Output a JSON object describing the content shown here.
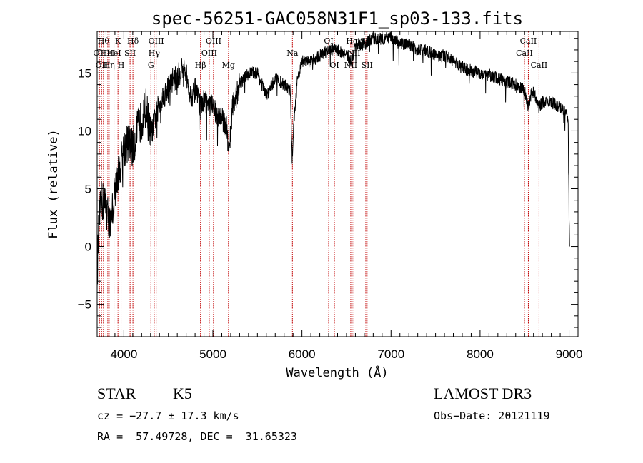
{
  "chart_data": {
    "type": "line",
    "title": "spec-56251-GAC058N31F1_sp03-133.fits",
    "xlabel": "Wavelength (Å)",
    "ylabel": "Flux (relative)",
    "xlim": [
      3700,
      9100
    ],
    "ylim": [
      -7.8,
      18.6
    ],
    "xticks": [
      4000,
      5000,
      6000,
      7000,
      8000,
      9000
    ],
    "yticks": [
      -5,
      0,
      5,
      10,
      15
    ],
    "anchors": [
      [
        3700,
        -2.5
      ],
      [
        3720,
        2.0
      ],
      [
        3750,
        4.0
      ],
      [
        3800,
        3.5
      ],
      [
        3850,
        1.5
      ],
      [
        3900,
        5.0
      ],
      [
        3950,
        6.5
      ],
      [
        4000,
        8.5
      ],
      [
        4050,
        9.0
      ],
      [
        4100,
        8.5
      ],
      [
        4150,
        10.0
      ],
      [
        4200,
        11.0
      ],
      [
        4250,
        12.0
      ],
      [
        4300,
        9.5
      ],
      [
        4350,
        11.0
      ],
      [
        4400,
        12.5
      ],
      [
        4450,
        13.0
      ],
      [
        4500,
        13.8
      ],
      [
        4550,
        14.5
      ],
      [
        4600,
        14.5
      ],
      [
        4650,
        15.5
      ],
      [
        4700,
        14.8
      ],
      [
        4750,
        13.0
      ],
      [
        4800,
        13.5
      ],
      [
        4860,
        12.0
      ],
      [
        4900,
        12.5
      ],
      [
        4950,
        12.3
      ],
      [
        5000,
        12.0
      ],
      [
        5050,
        11.5
      ],
      [
        5100,
        11.0
      ],
      [
        5150,
        10.5
      ],
      [
        5180,
        8.0
      ],
      [
        5220,
        12.0
      ],
      [
        5300,
        14.0
      ],
      [
        5400,
        15.0
      ],
      [
        5500,
        15.0
      ],
      [
        5600,
        13.0
      ],
      [
        5700,
        14.5
      ],
      [
        5800,
        14.0
      ],
      [
        5870,
        13.5
      ],
      [
        5890,
        7.5
      ],
      [
        5910,
        11.0
      ],
      [
        5950,
        14.5
      ],
      [
        6000,
        16.0
      ],
      [
        6100,
        16.0
      ],
      [
        6200,
        16.5
      ],
      [
        6300,
        17.0
      ],
      [
        6400,
        17.0
      ],
      [
        6500,
        16.5
      ],
      [
        6560,
        16.0
      ],
      [
        6600,
        17.5
      ],
      [
        6700,
        17.5
      ],
      [
        6800,
        18.0
      ],
      [
        6900,
        18.0
      ],
      [
        7000,
        18.0
      ],
      [
        7100,
        17.5
      ],
      [
        7200,
        17.5
      ],
      [
        7300,
        17.0
      ],
      [
        7400,
        17.0
      ],
      [
        7500,
        16.5
      ],
      [
        7600,
        16.5
      ],
      [
        7700,
        16.0
      ],
      [
        7800,
        15.5
      ],
      [
        7900,
        15.2
      ],
      [
        8000,
        15.0
      ],
      [
        8100,
        14.8
      ],
      [
        8200,
        14.5
      ],
      [
        8300,
        14.3
      ],
      [
        8400,
        14.0
      ],
      [
        8498,
        13.5
      ],
      [
        8530,
        12.5
      ],
      [
        8542,
        12.0
      ],
      [
        8580,
        13.5
      ],
      [
        8620,
        13.0
      ],
      [
        8662,
        12.0
      ],
      [
        8700,
        12.5
      ],
      [
        8800,
        12.5
      ],
      [
        8900,
        12.0
      ],
      [
        8970,
        11.5
      ],
      [
        8990,
        11.0
      ],
      [
        9000,
        2.5
      ],
      [
        9005,
        0.0
      ]
    ],
    "line_markers": [
      {
        "wl": 3726,
        "label": "OII",
        "row": 2
      },
      {
        "wl": 3750,
        "label": "OII",
        "row": 3
      },
      {
        "wl": 3771,
        "label": "Hθ",
        "row": 1
      },
      {
        "wl": 3820,
        "label": "HeI",
        "row": 2
      },
      {
        "wl": 3835,
        "label": "Hη",
        "row": 3
      },
      {
        "wl": 3889,
        "label": "HeI",
        "row": 2
      },
      {
        "wl": 3934,
        "label": "K",
        "row": 1
      },
      {
        "wl": 3969,
        "label": "H",
        "row": 3
      },
      {
        "wl": 4070,
        "label": "SII",
        "row": 2
      },
      {
        "wl": 4102,
        "label": "Hδ",
        "row": 1
      },
      {
        "wl": 4304,
        "label": "G",
        "row": 3
      },
      {
        "wl": 4341,
        "label": "Hγ",
        "row": 2
      },
      {
        "wl": 4363,
        "label": "OIII",
        "row": 1
      },
      {
        "wl": 4861,
        "label": "Hβ",
        "row": 3
      },
      {
        "wl": 4959,
        "label": "OIII",
        "row": 2
      },
      {
        "wl": 5007,
        "label": "OIII",
        "row": 1
      },
      {
        "wl": 5175,
        "label": "Mg",
        "row": 3
      },
      {
        "wl": 5893,
        "label": "Na",
        "row": 2
      },
      {
        "wl": 6300,
        "label": "OI",
        "row": 1
      },
      {
        "wl": 6364,
        "label": "OI",
        "row": 3
      },
      {
        "wl": 6548,
        "label": "NII",
        "row": 3
      },
      {
        "wl": 6563,
        "label": "Hα",
        "row": 1
      },
      {
        "wl": 6583,
        "label": "NII",
        "row": 2
      },
      {
        "wl": 6717,
        "label": "SII",
        "row": 1
      },
      {
        "wl": 6731,
        "label": "SII",
        "row": 3
      },
      {
        "wl": 8498,
        "label": "CaII",
        "row": 2
      },
      {
        "wl": 8542,
        "label": "CaII",
        "row": 1
      },
      {
        "wl": 8662,
        "label": "CaII",
        "row": 3
      }
    ]
  },
  "info": {
    "object_class": "STAR",
    "subclass": "K5",
    "survey": "LAMOST DR3",
    "cz": "cz = −27.7 ± 17.3 km/s",
    "obs_date": "Obs−Date: 20121119",
    "radec": "RA =  57.49728, DEC =  31.65323"
  },
  "colors": {
    "spectrum": "#000000",
    "marker": "#c00000",
    "background": "#ffffff"
  }
}
